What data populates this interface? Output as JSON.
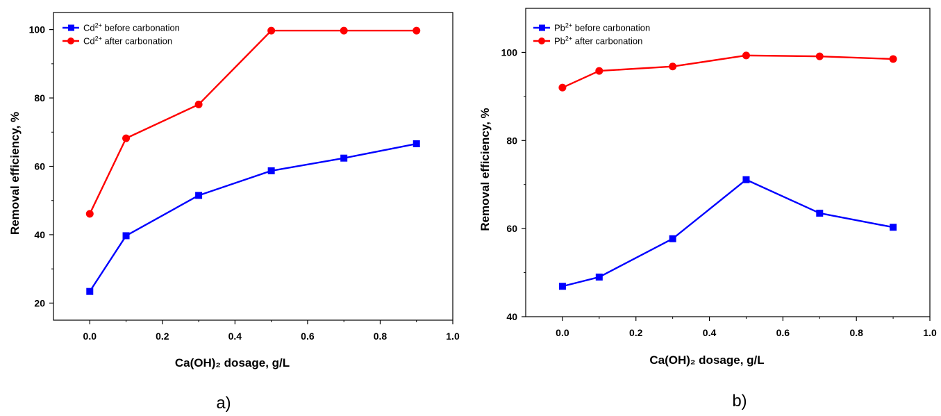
{
  "chart_data": [
    {
      "type": "line",
      "panel_label": "a)",
      "xlabel": "Ca(OH)₂ dosage, g/L",
      "ylabel": "Removal efficiency, %",
      "xlim": [
        -0.1,
        1.0
      ],
      "ylim": [
        15,
        105
      ],
      "xticks": [
        0.0,
        0.2,
        0.4,
        0.6,
        0.8,
        1.0
      ],
      "xtick_labels": [
        "0.0",
        "0.2",
        "0.4",
        "0.6",
        "0.8",
        "1.0"
      ],
      "yticks": [
        20,
        40,
        60,
        80,
        100
      ],
      "ytick_labels": [
        "20",
        "40",
        "60",
        "80",
        "100"
      ],
      "grid": false,
      "legend_position": "top-left",
      "x": [
        0.0,
        0.1,
        0.3,
        0.5,
        0.7,
        0.9
      ],
      "series": [
        {
          "name": "Cd",
          "sup": "2+",
          "suffix": " before carbonation",
          "color": "#0000ff",
          "marker": "square",
          "values": [
            23.4,
            39.7,
            51.5,
            58.7,
            62.4,
            66.6
          ]
        },
        {
          "name": "Cd",
          "sup": "2+",
          "suffix": " after carbonation",
          "color": "#ff0000",
          "marker": "circle",
          "values": [
            46.1,
            68.2,
            78.1,
            99.7,
            99.7,
            99.7
          ]
        }
      ]
    },
    {
      "type": "line",
      "panel_label": "b)",
      "xlabel": "Ca(OH)₂ dosage, g/L",
      "ylabel": "Removal efficiency, %",
      "xlim": [
        -0.1,
        1.0
      ],
      "ylim": [
        40,
        110
      ],
      "xticks": [
        0.0,
        0.2,
        0.4,
        0.6,
        0.8,
        1.0
      ],
      "xtick_labels": [
        "0.0",
        "0.2",
        "0.4",
        "0.6",
        "0.8",
        "1.0"
      ],
      "yticks": [
        40,
        60,
        80,
        100
      ],
      "ytick_labels": [
        "40",
        "60",
        "80",
        "100"
      ],
      "grid": false,
      "legend_position": "top-left",
      "x": [
        0.0,
        0.1,
        0.3,
        0.5,
        0.7,
        0.9
      ],
      "series": [
        {
          "name": "Pb",
          "sup": "2+",
          "suffix": " before carbonation",
          "color": "#0000ff",
          "marker": "square",
          "values": [
            46.9,
            49.0,
            57.7,
            71.1,
            63.5,
            60.3
          ]
        },
        {
          "name": "Pb",
          "sup": "2+",
          "suffix": " after carbonation",
          "color": "#ff0000",
          "marker": "circle",
          "values": [
            92.0,
            95.8,
            96.8,
            99.3,
            99.1,
            98.5
          ]
        }
      ]
    }
  ]
}
